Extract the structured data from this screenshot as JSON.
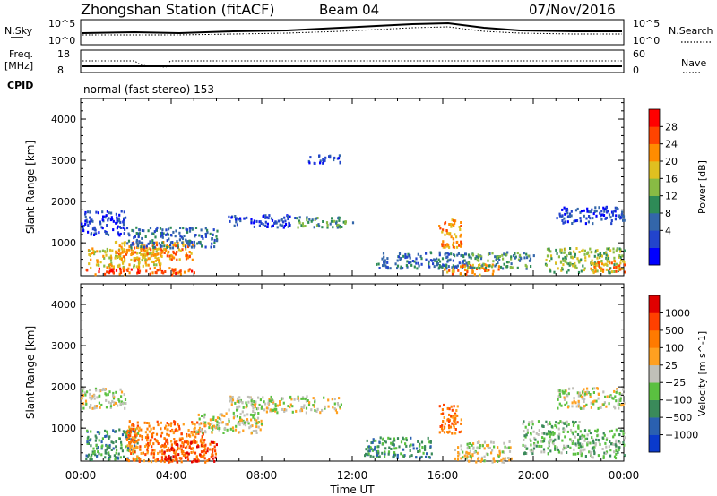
{
  "header": {
    "title": "Zhongshan Station (fitACF)",
    "beam": "Beam 04",
    "date": "07/Nov/2016"
  },
  "top_panels": {
    "nsky_label": "N.Sky",
    "nsky_ticks": [
      "10^5",
      "10^0"
    ],
    "nsearch_label": "N.Search",
    "nsearch_ticks": [
      "10^5",
      "10^0"
    ],
    "freq_label": "Freq.",
    "freq_unit": "[MHz]",
    "freq_ticks": [
      "18",
      "8"
    ],
    "nave_label": "Nave",
    "nave_ticks": [
      "60",
      "0"
    ],
    "cpid_label": "CPID",
    "cpid_text": "normal (fast stereo) 153"
  },
  "chart_data": [
    {
      "type": "heatmap",
      "name": "power",
      "ylabel": "Slant Range [km]",
      "ylim": [
        200,
        4500
      ],
      "yticks": [
        "4000",
        "3000",
        "2000",
        "1000"
      ],
      "colorbar_label": "Power [dB]",
      "colorbar_ticks": [
        "28",
        "24",
        "20",
        "16",
        "12",
        "8",
        "4"
      ],
      "colors": [
        "#0000ff",
        "#2244cc",
        "#3366aa",
        "#2e8b57",
        "#88bb44",
        "#e0c020",
        "#ff8c00",
        "#ff4400",
        "#ff0000"
      ],
      "blobs": [
        {
          "t": [
            0.2,
            5.0
          ],
          "r": [
            250,
            420
          ],
          "level": 7
        },
        {
          "t": [
            0.3,
            3.5
          ],
          "r": [
            400,
            900
          ],
          "level": 5
        },
        {
          "t": [
            1.5,
            5.0
          ],
          "r": [
            600,
            1050
          ],
          "level": 6
        },
        {
          "t": [
            0.0,
            2.0
          ],
          "r": [
            1200,
            1800
          ],
          "level": 1
        },
        {
          "t": [
            2.0,
            6.0
          ],
          "r": [
            900,
            1400
          ],
          "level": 2
        },
        {
          "t": [
            6.5,
            9.5
          ],
          "r": [
            1400,
            1700
          ],
          "level": 1
        },
        {
          "t": [
            9.5,
            12.0
          ],
          "r": [
            1400,
            1650
          ],
          "level": 3
        },
        {
          "t": [
            10.0,
            11.5
          ],
          "r": [
            2950,
            3150
          ],
          "level": 1
        },
        {
          "t": [
            13.0,
            17.0
          ],
          "r": [
            400,
            800
          ],
          "level": 2
        },
        {
          "t": [
            15.8,
            16.8
          ],
          "r": [
            900,
            1600
          ],
          "level": 6
        },
        {
          "t": [
            16.0,
            18.5
          ],
          "r": [
            250,
            500
          ],
          "level": 6
        },
        {
          "t": [
            17.0,
            20.0
          ],
          "r": [
            400,
            800
          ],
          "level": 3
        },
        {
          "t": [
            21.0,
            24.0
          ],
          "r": [
            1500,
            1900
          ],
          "level": 1
        },
        {
          "t": [
            20.5,
            24.0
          ],
          "r": [
            300,
            900
          ],
          "level": 4
        },
        {
          "t": [
            22.5,
            24.0
          ],
          "r": [
            300,
            600
          ],
          "level": 6
        }
      ]
    },
    {
      "type": "heatmap",
      "name": "velocity",
      "ylabel": "Slant Range [km]",
      "ylim": [
        200,
        4500
      ],
      "yticks": [
        "4000",
        "3000",
        "2000",
        "1000"
      ],
      "colorbar_label": "Velocity [m s^-1]",
      "colorbar_ticks": [
        "1000",
        "500",
        "100",
        "25",
        "−25",
        "−100",
        "−500",
        "−1000"
      ],
      "colors": [
        "#0a3acc",
        "#2a60b0",
        "#3a8a5a",
        "#5ac040",
        "#c0c0b8",
        "#ffa020",
        "#ff7a00",
        "#ff4000",
        "#e00000"
      ],
      "blobs": [
        {
          "t": [
            0.0,
            2.0
          ],
          "r": [
            1500,
            2000
          ],
          "level": 4
        },
        {
          "t": [
            0.2,
            2.5
          ],
          "r": [
            250,
            1000
          ],
          "level": 2
        },
        {
          "t": [
            2.0,
            5.5
          ],
          "r": [
            200,
            1200
          ],
          "level": 6
        },
        {
          "t": [
            3.5,
            6.0
          ],
          "r": [
            200,
            700
          ],
          "level": 7
        },
        {
          "t": [
            5.0,
            8.0
          ],
          "r": [
            900,
            1400
          ],
          "level": 4
        },
        {
          "t": [
            6.5,
            11.5
          ],
          "r": [
            1400,
            1800
          ],
          "level": 4
        },
        {
          "t": [
            12.5,
            15.5
          ],
          "r": [
            300,
            800
          ],
          "level": 2
        },
        {
          "t": [
            15.8,
            16.8
          ],
          "r": [
            900,
            1600
          ],
          "level": 6
        },
        {
          "t": [
            16.5,
            19.0
          ],
          "r": [
            200,
            700
          ],
          "level": 4
        },
        {
          "t": [
            19.5,
            22.0
          ],
          "r": [
            400,
            1200
          ],
          "level": 3
        },
        {
          "t": [
            21.0,
            24.0
          ],
          "r": [
            1500,
            2000
          ],
          "level": 4
        },
        {
          "t": [
            22.0,
            24.0
          ],
          "r": [
            300,
            1000
          ],
          "level": 3
        }
      ]
    }
  ],
  "time_axis": {
    "ticks": [
      "00:00",
      "04:00",
      "08:00",
      "12:00",
      "16:00",
      "20:00",
      "00:00"
    ],
    "label": "Time UT",
    "range_hours": [
      0,
      24
    ]
  }
}
